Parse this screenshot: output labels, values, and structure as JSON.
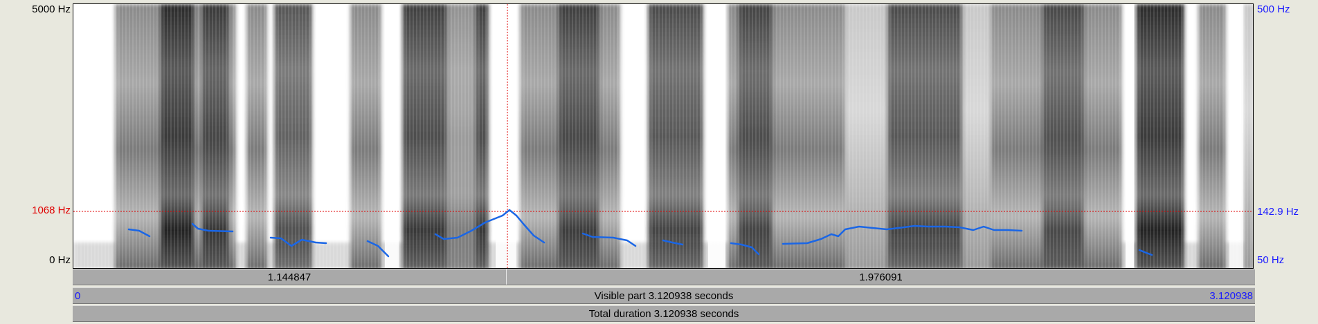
{
  "left_axis": {
    "top_label": "5000 Hz",
    "cursor_label": "1068 Hz",
    "bottom_label": "0 Hz"
  },
  "right_axis": {
    "top_label": "500 Hz",
    "cursor_label": "142.9 Hz",
    "bottom_label": "50 Hz"
  },
  "selection_bar": {
    "left_segment": "1.144847",
    "right_segment": "1.976091"
  },
  "visible_bar": {
    "start": "0",
    "label": "Visible part 3.120938 seconds",
    "end": "3.120938"
  },
  "total_bar": {
    "label": "Total duration 3.120938 seconds"
  },
  "colors": {
    "pitch": "#1a66e6",
    "cursor": "#e00000",
    "pitch_axis": "#1a1aff"
  }
}
